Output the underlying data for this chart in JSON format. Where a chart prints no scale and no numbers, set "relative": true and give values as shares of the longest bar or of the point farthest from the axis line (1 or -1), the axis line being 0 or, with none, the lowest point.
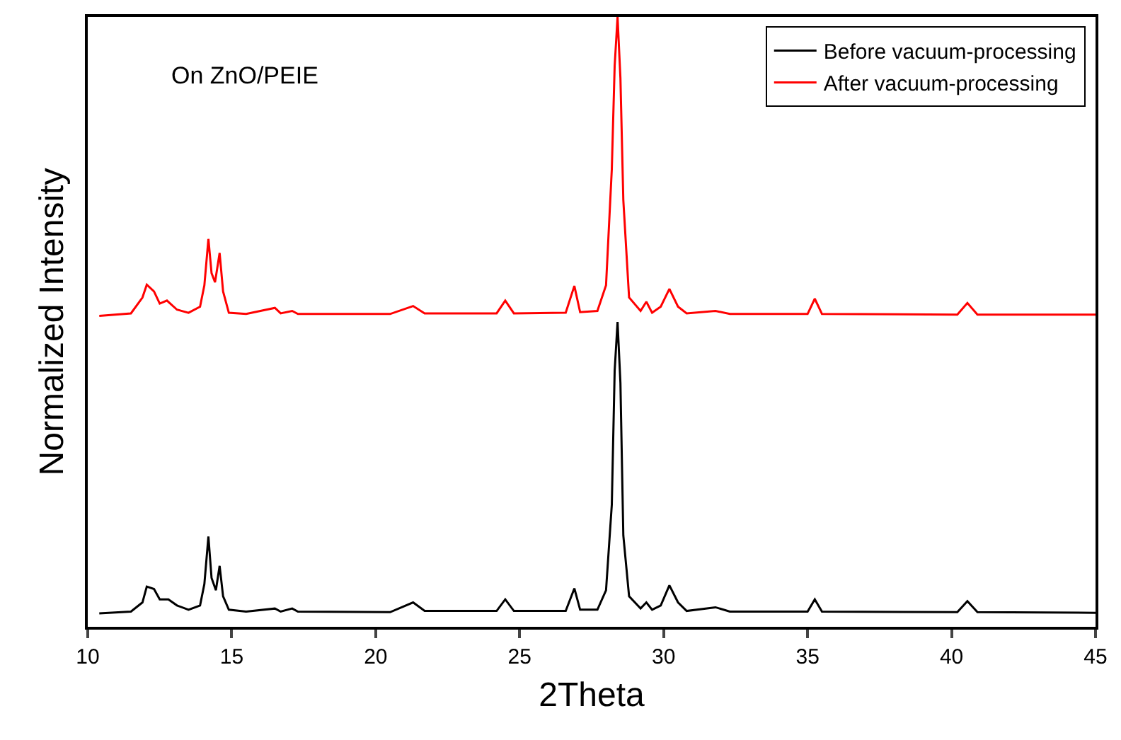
{
  "chart_data": {
    "type": "line",
    "relative": true,
    "xlabel": "2Theta",
    "ylabel": "Normalized Intensity",
    "xlim": [
      10,
      45
    ],
    "xticks": [
      10,
      15,
      20,
      25,
      30,
      35,
      40,
      45
    ],
    "legend": "top right",
    "marker": "none",
    "line_style": "solid",
    "tick_labels": "x",
    "annotations": [
      "On ZnO/PEIE"
    ],
    "series": [
      {
        "name": "Before vacuum-processing",
        "color": "#000000",
        "x": [
          10.4,
          11.5,
          11.9,
          12.05,
          12.3,
          12.5,
          12.8,
          13.1,
          13.5,
          13.9,
          14.05,
          14.19,
          14.3,
          14.45,
          14.58,
          14.7,
          14.9,
          15.5,
          16.5,
          16.7,
          17.1,
          17.3,
          20.5,
          21.3,
          21.7,
          24.2,
          24.5,
          24.8,
          26.6,
          26.9,
          27.1,
          27.7,
          28.0,
          28.2,
          28.3,
          28.4,
          28.5,
          28.6,
          28.8,
          29.2,
          29.4,
          29.6,
          29.9,
          30.2,
          30.5,
          30.8,
          31.8,
          32.3,
          35.0,
          35.25,
          35.5,
          40.2,
          40.55,
          40.9,
          45
        ],
        "values": [
          0.022,
          0.025,
          0.04,
          0.066,
          0.062,
          0.045,
          0.045,
          0.035,
          0.028,
          0.035,
          0.07,
          0.148,
          0.08,
          0.06,
          0.1,
          0.05,
          0.028,
          0.025,
          0.03,
          0.025,
          0.03,
          0.025,
          0.024,
          0.04,
          0.026,
          0.026,
          0.045,
          0.026,
          0.026,
          0.063,
          0.028,
          0.028,
          0.06,
          0.2,
          0.42,
          0.5,
          0.4,
          0.15,
          0.05,
          0.03,
          0.04,
          0.028,
          0.035,
          0.068,
          0.04,
          0.026,
          0.032,
          0.025,
          0.025,
          0.045,
          0.025,
          0.024,
          0.042,
          0.024,
          0.023
        ]
      },
      {
        "name": "After vacuum-processing",
        "color": "#ff0000",
        "x": [
          10.4,
          11.5,
          11.9,
          12.05,
          12.3,
          12.5,
          12.75,
          13.1,
          13.5,
          13.9,
          14.05,
          14.19,
          14.3,
          14.42,
          14.58,
          14.7,
          14.9,
          15.5,
          16.5,
          16.7,
          17.1,
          17.3,
          20.5,
          21.3,
          21.7,
          24.2,
          24.5,
          24.8,
          26.6,
          26.9,
          27.1,
          27.7,
          28.0,
          28.2,
          28.3,
          28.4,
          28.5,
          28.6,
          28.8,
          29.2,
          29.4,
          29.6,
          29.9,
          30.2,
          30.5,
          30.8,
          31.8,
          32.3,
          35.0,
          35.25,
          35.5,
          40.2,
          40.55,
          40.9,
          45
        ],
        "values": [
          0.51,
          0.514,
          0.54,
          0.561,
          0.55,
          0.53,
          0.535,
          0.52,
          0.515,
          0.525,
          0.56,
          0.636,
          0.58,
          0.565,
          0.613,
          0.55,
          0.515,
          0.513,
          0.523,
          0.514,
          0.518,
          0.513,
          0.513,
          0.526,
          0.514,
          0.514,
          0.535,
          0.514,
          0.515,
          0.559,
          0.516,
          0.518,
          0.56,
          0.75,
          0.92,
          1.0,
          0.9,
          0.7,
          0.54,
          0.518,
          0.533,
          0.515,
          0.525,
          0.554,
          0.525,
          0.514,
          0.518,
          0.513,
          0.513,
          0.538,
          0.513,
          0.512,
          0.531,
          0.512,
          0.512
        ]
      }
    ]
  }
}
